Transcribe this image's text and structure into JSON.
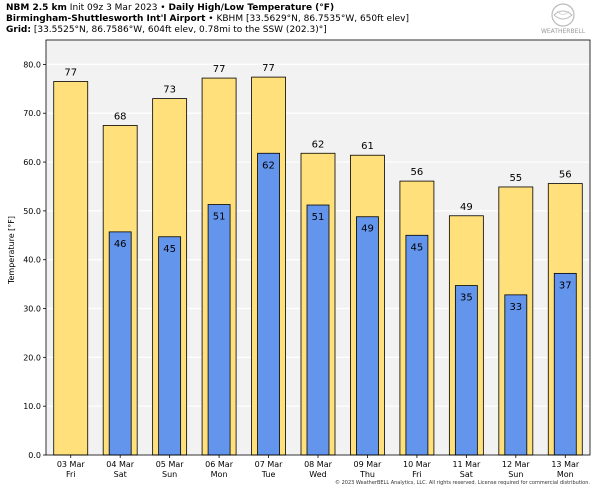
{
  "header": {
    "model": "NBM 2.5 km",
    "init": "Init 09z 3 Mar 2023",
    "title": "Daily High/Low Temperature (°F)",
    "station_name": "Birmingham-Shuttlesworth Int'l Airport",
    "station_info": "KBHM [33.5629°N, 86.7535°W, 650ft elev]",
    "grid_label": "Grid:",
    "grid_info": "[33.5525°N, 86.7586°W, 604ft elev, 0.78mi to the SSW (202.3)°]",
    "bullet": "•",
    "logo_text": "WEATHERBELL"
  },
  "footer": {
    "copyright": "© 2023 WeatherBELL Analytics, LLC. All rights reserved. License required for commercial distribution."
  },
  "colors": {
    "high": "#ffe07a",
    "low": "#6495ed",
    "plot_bg": "#f2f2f2",
    "grid": "#ffffff"
  },
  "chart_data": {
    "type": "bar",
    "title": "Daily High/Low Temperature (°F)",
    "xlabel": "",
    "ylabel": "Temperature [°F]",
    "ylim": [
      0,
      85
    ],
    "yticks": [
      "0.0",
      "10.0",
      "20.0",
      "30.0",
      "40.0",
      "50.0",
      "60.0",
      "70.0",
      "80.0"
    ],
    "grid": true,
    "categories": [
      {
        "date": "03 Mar",
        "day": "Fri"
      },
      {
        "date": "04 Mar",
        "day": "Sat"
      },
      {
        "date": "05 Mar",
        "day": "Sun"
      },
      {
        "date": "06 Mar",
        "day": "Mon"
      },
      {
        "date": "07 Mar",
        "day": "Tue"
      },
      {
        "date": "08 Mar",
        "day": "Wed"
      },
      {
        "date": "09 Mar",
        "day": "Thu"
      },
      {
        "date": "10 Mar",
        "day": "Fri"
      },
      {
        "date": "11 Mar",
        "day": "Sat"
      },
      {
        "date": "12 Mar",
        "day": "Sun"
      },
      {
        "date": "13 Mar",
        "day": "Mon"
      }
    ],
    "series": [
      {
        "name": "High",
        "values": [
          76.5,
          67.5,
          73,
          77.2,
          77.4,
          61.8,
          61.4,
          56.1,
          49,
          54.9,
          55.6
        ],
        "labels": [
          "77",
          "68",
          "73",
          "77",
          "77",
          "62",
          "61",
          "56",
          "49",
          "55",
          "56"
        ]
      },
      {
        "name": "Low",
        "values": [
          null,
          45.7,
          44.7,
          51.3,
          61.8,
          51.2,
          48.8,
          45,
          34.7,
          32.8,
          37.2
        ],
        "labels": [
          "",
          "46",
          "45",
          "51",
          "62",
          "51",
          "49",
          "45",
          "35",
          "33",
          "37"
        ]
      }
    ]
  }
}
